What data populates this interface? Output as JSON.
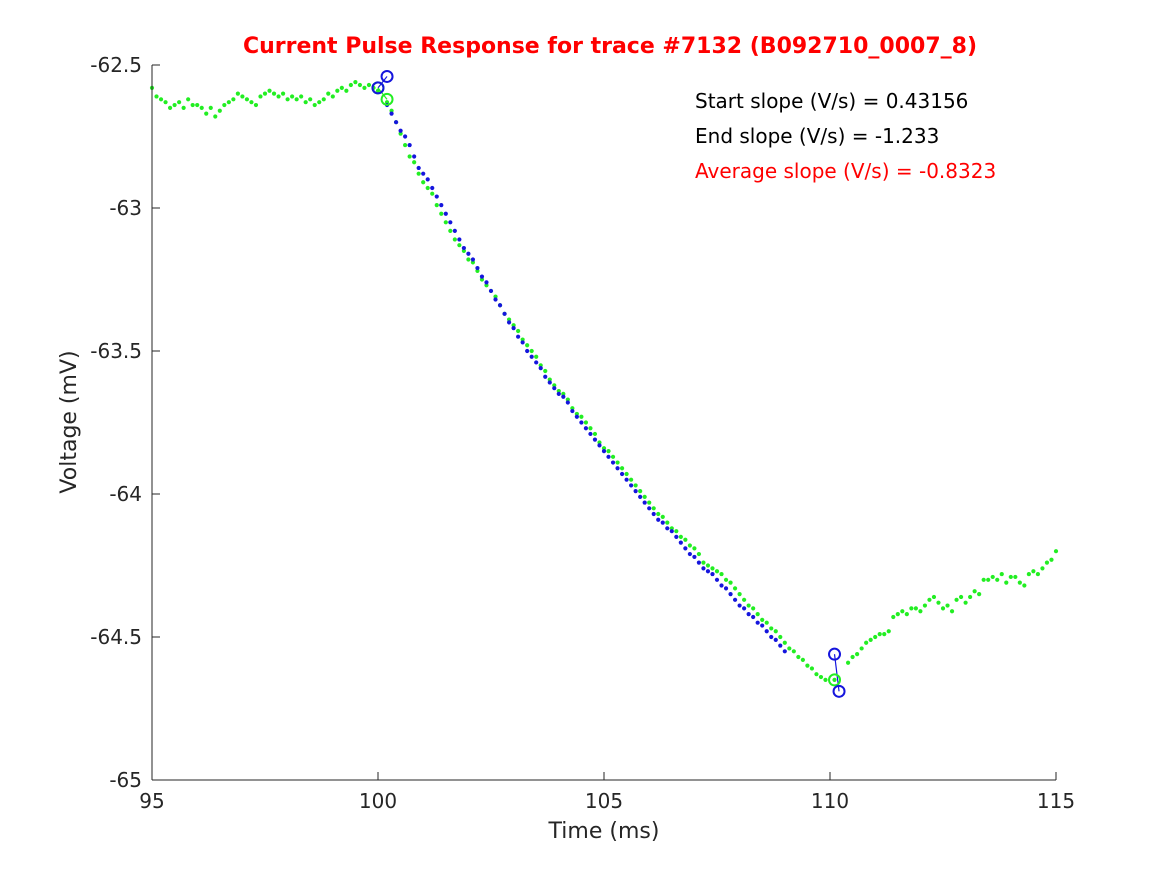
{
  "chart_data": {
    "type": "scatter",
    "title": "Current Pulse Response for trace #7132 (B092710_0007_8)",
    "xlabel": "Time (ms)",
    "ylabel": "Voltage (mV)",
    "xlim": [
      95,
      115
    ],
    "ylim": [
      -65,
      -62.5
    ],
    "xticks": [
      95,
      100,
      105,
      110,
      115
    ],
    "yticks": [
      -65,
      -64.5,
      -64,
      -63.5,
      -63,
      -62.5
    ],
    "xtick_labels": [
      "95",
      "100",
      "105",
      "110",
      "115"
    ],
    "ytick_labels": [
      "-65",
      "-64.5",
      "-64",
      "-63.5",
      "-63",
      "-62.5"
    ],
    "grid": false,
    "colors": {
      "green": "#22ee22",
      "blue": "#1515dd",
      "title": "#ff0000",
      "annotation_black": "#000000",
      "annotation_red": "#ff0000",
      "axis": "#262626"
    },
    "green_trace_points": [
      [
        95.0,
        -62.58
      ],
      [
        95.1,
        -62.61
      ],
      [
        95.2,
        -62.62
      ],
      [
        95.3,
        -62.63
      ],
      [
        95.4,
        -62.65
      ],
      [
        95.5,
        -62.64
      ],
      [
        95.6,
        -62.63
      ],
      [
        95.7,
        -62.65
      ],
      [
        95.8,
        -62.62
      ],
      [
        95.9,
        -62.64
      ],
      [
        96.0,
        -62.64
      ],
      [
        96.1,
        -62.65
      ],
      [
        96.2,
        -62.67
      ],
      [
        96.3,
        -62.65
      ],
      [
        96.4,
        -62.68
      ],
      [
        96.5,
        -62.66
      ],
      [
        96.6,
        -62.64
      ],
      [
        96.7,
        -62.63
      ],
      [
        96.8,
        -62.62
      ],
      [
        96.9,
        -62.6
      ],
      [
        97.0,
        -62.61
      ],
      [
        97.1,
        -62.62
      ],
      [
        97.2,
        -62.63
      ],
      [
        97.3,
        -62.64
      ],
      [
        97.4,
        -62.61
      ],
      [
        97.5,
        -62.6
      ],
      [
        97.6,
        -62.59
      ],
      [
        97.7,
        -62.6
      ],
      [
        97.8,
        -62.61
      ],
      [
        97.9,
        -62.6
      ],
      [
        98.0,
        -62.62
      ],
      [
        98.1,
        -62.61
      ],
      [
        98.2,
        -62.62
      ],
      [
        98.3,
        -62.61
      ],
      [
        98.4,
        -62.63
      ],
      [
        98.5,
        -62.62
      ],
      [
        98.6,
        -62.64
      ],
      [
        98.7,
        -62.63
      ],
      [
        98.8,
        -62.62
      ],
      [
        98.9,
        -62.6
      ],
      [
        99.0,
        -62.61
      ],
      [
        99.1,
        -62.59
      ],
      [
        99.2,
        -62.58
      ],
      [
        99.3,
        -62.59
      ],
      [
        99.4,
        -62.57
      ],
      [
        99.5,
        -62.56
      ],
      [
        99.6,
        -62.57
      ],
      [
        99.7,
        -62.58
      ],
      [
        99.8,
        -62.57
      ],
      [
        99.9,
        -62.58
      ],
      [
        100.0,
        -62.59
      ],
      [
        100.2,
        -62.63
      ],
      [
        100.3,
        -62.66
      ],
      [
        100.4,
        -62.7
      ],
      [
        100.5,
        -62.74
      ],
      [
        100.6,
        -62.78
      ],
      [
        100.7,
        -62.82
      ],
      [
        100.8,
        -62.84
      ],
      [
        100.9,
        -62.88
      ],
      [
        101.0,
        -62.91
      ],
      [
        101.1,
        -62.93
      ],
      [
        101.2,
        -62.95
      ],
      [
        101.3,
        -62.99
      ],
      [
        101.4,
        -63.02
      ],
      [
        101.5,
        -63.05
      ],
      [
        101.6,
        -63.08
      ],
      [
        101.7,
        -63.11
      ],
      [
        101.8,
        -63.13
      ],
      [
        101.9,
        -63.15
      ],
      [
        102.0,
        -63.18
      ],
      [
        102.1,
        -63.19
      ],
      [
        102.2,
        -63.22
      ],
      [
        102.3,
        -63.25
      ],
      [
        102.4,
        -63.27
      ],
      [
        102.5,
        -63.29
      ],
      [
        102.6,
        -63.31
      ],
      [
        102.7,
        -63.34
      ],
      [
        102.8,
        -63.37
      ],
      [
        102.9,
        -63.39
      ],
      [
        103.0,
        -63.41
      ],
      [
        103.1,
        -63.43
      ],
      [
        103.2,
        -63.46
      ],
      [
        103.3,
        -63.48
      ],
      [
        103.4,
        -63.5
      ],
      [
        103.5,
        -63.52
      ],
      [
        103.6,
        -63.55
      ],
      [
        103.7,
        -63.57
      ],
      [
        103.8,
        -63.6
      ],
      [
        103.9,
        -63.62
      ],
      [
        104.0,
        -63.64
      ],
      [
        104.1,
        -63.65
      ],
      [
        104.2,
        -63.67
      ],
      [
        104.3,
        -63.7
      ],
      [
        104.4,
        -63.72
      ],
      [
        104.5,
        -63.73
      ],
      [
        104.6,
        -63.75
      ],
      [
        104.7,
        -63.77
      ],
      [
        104.8,
        -63.79
      ],
      [
        104.9,
        -63.82
      ],
      [
        105.0,
        -63.84
      ],
      [
        105.1,
        -63.85
      ],
      [
        105.2,
        -63.87
      ],
      [
        105.3,
        -63.89
      ],
      [
        105.4,
        -63.91
      ],
      [
        105.5,
        -63.93
      ],
      [
        105.6,
        -63.95
      ],
      [
        105.7,
        -63.97
      ],
      [
        105.8,
        -63.99
      ],
      [
        105.9,
        -64.01
      ],
      [
        106.0,
        -64.03
      ],
      [
        106.1,
        -64.05
      ],
      [
        106.2,
        -64.07
      ],
      [
        106.3,
        -64.08
      ],
      [
        106.4,
        -64.1
      ],
      [
        106.5,
        -64.12
      ],
      [
        106.6,
        -64.13
      ],
      [
        106.7,
        -64.15
      ],
      [
        106.8,
        -64.16
      ],
      [
        106.9,
        -64.18
      ],
      [
        107.0,
        -64.19
      ],
      [
        107.1,
        -64.21
      ],
      [
        107.2,
        -64.24
      ],
      [
        107.3,
        -64.25
      ],
      [
        107.4,
        -64.26
      ],
      [
        107.5,
        -64.27
      ],
      [
        107.6,
        -64.28
      ],
      [
        107.7,
        -64.3
      ],
      [
        107.8,
        -64.31
      ],
      [
        107.9,
        -64.33
      ],
      [
        108.0,
        -64.35
      ],
      [
        108.1,
        -64.37
      ],
      [
        108.2,
        -64.39
      ],
      [
        108.3,
        -64.4
      ],
      [
        108.4,
        -64.42
      ],
      [
        108.5,
        -64.44
      ],
      [
        108.6,
        -64.45
      ],
      [
        108.7,
        -64.47
      ],
      [
        108.8,
        -64.48
      ],
      [
        108.9,
        -64.5
      ],
      [
        109.0,
        -64.52
      ],
      [
        109.1,
        -64.54
      ],
      [
        109.2,
        -64.55
      ],
      [
        109.3,
        -64.57
      ],
      [
        109.4,
        -64.58
      ],
      [
        109.5,
        -64.6
      ],
      [
        109.6,
        -64.61
      ],
      [
        109.7,
        -64.63
      ],
      [
        109.8,
        -64.64
      ],
      [
        109.9,
        -64.65
      ],
      [
        110.1,
        -64.65
      ],
      [
        110.4,
        -64.59
      ],
      [
        110.5,
        -64.57
      ],
      [
        110.6,
        -64.56
      ],
      [
        110.7,
        -64.54
      ],
      [
        110.8,
        -64.52
      ],
      [
        110.9,
        -64.51
      ],
      [
        111.0,
        -64.5
      ],
      [
        111.1,
        -64.49
      ],
      [
        111.2,
        -64.49
      ],
      [
        111.3,
        -64.48
      ],
      [
        111.4,
        -64.43
      ],
      [
        111.5,
        -64.42
      ],
      [
        111.6,
        -64.41
      ],
      [
        111.7,
        -64.42
      ],
      [
        111.8,
        -64.4
      ],
      [
        111.9,
        -64.4
      ],
      [
        112.0,
        -64.41
      ],
      [
        112.1,
        -64.39
      ],
      [
        112.2,
        -64.37
      ],
      [
        112.3,
        -64.36
      ],
      [
        112.4,
        -64.38
      ],
      [
        112.5,
        -64.4
      ],
      [
        112.6,
        -64.39
      ],
      [
        112.7,
        -64.41
      ],
      [
        112.8,
        -64.37
      ],
      [
        112.9,
        -64.36
      ],
      [
        113.0,
        -64.38
      ],
      [
        113.1,
        -64.36
      ],
      [
        113.2,
        -64.34
      ],
      [
        113.3,
        -64.35
      ],
      [
        113.4,
        -64.3
      ],
      [
        113.5,
        -64.3
      ],
      [
        113.6,
        -64.29
      ],
      [
        113.7,
        -64.3
      ],
      [
        113.8,
        -64.28
      ],
      [
        113.9,
        -64.31
      ],
      [
        114.0,
        -64.29
      ],
      [
        114.1,
        -64.29
      ],
      [
        114.2,
        -64.31
      ],
      [
        114.3,
        -64.32
      ],
      [
        114.4,
        -64.28
      ],
      [
        114.5,
        -64.27
      ],
      [
        114.6,
        -64.28
      ],
      [
        114.7,
        -64.26
      ],
      [
        114.8,
        -64.24
      ],
      [
        114.9,
        -64.23
      ],
      [
        115.0,
        -64.2
      ]
    ],
    "blue_trace_points": [
      [
        100.2,
        -62.64
      ],
      [
        100.3,
        -62.67
      ],
      [
        100.4,
        -62.7
      ],
      [
        100.5,
        -62.73
      ],
      [
        100.6,
        -62.75
      ],
      [
        100.7,
        -62.78
      ],
      [
        100.8,
        -62.82
      ],
      [
        100.9,
        -62.86
      ],
      [
        101.0,
        -62.88
      ],
      [
        101.1,
        -62.9
      ],
      [
        101.2,
        -62.93
      ],
      [
        101.3,
        -62.96
      ],
      [
        101.4,
        -62.99
      ],
      [
        101.5,
        -63.02
      ],
      [
        101.6,
        -63.05
      ],
      [
        101.7,
        -63.08
      ],
      [
        101.8,
        -63.11
      ],
      [
        101.9,
        -63.14
      ],
      [
        102.0,
        -63.16
      ],
      [
        102.1,
        -63.18
      ],
      [
        102.2,
        -63.21
      ],
      [
        102.3,
        -63.24
      ],
      [
        102.4,
        -63.26
      ],
      [
        102.5,
        -63.29
      ],
      [
        102.6,
        -63.32
      ],
      [
        102.7,
        -63.34
      ],
      [
        102.8,
        -63.37
      ],
      [
        102.9,
        -63.4
      ],
      [
        103.0,
        -63.42
      ],
      [
        103.1,
        -63.45
      ],
      [
        103.2,
        -63.47
      ],
      [
        103.3,
        -63.5
      ],
      [
        103.4,
        -63.52
      ],
      [
        103.5,
        -63.54
      ],
      [
        103.6,
        -63.56
      ],
      [
        103.7,
        -63.59
      ],
      [
        103.8,
        -63.61
      ],
      [
        103.9,
        -63.63
      ],
      [
        104.0,
        -63.65
      ],
      [
        104.1,
        -63.66
      ],
      [
        104.2,
        -63.68
      ],
      [
        104.3,
        -63.71
      ],
      [
        104.4,
        -63.73
      ],
      [
        104.5,
        -63.75
      ],
      [
        104.6,
        -63.77
      ],
      [
        104.7,
        -63.79
      ],
      [
        104.8,
        -63.81
      ],
      [
        104.9,
        -63.83
      ],
      [
        105.0,
        -63.85
      ],
      [
        105.1,
        -63.87
      ],
      [
        105.2,
        -63.89
      ],
      [
        105.3,
        -63.91
      ],
      [
        105.4,
        -63.93
      ],
      [
        105.5,
        -63.95
      ],
      [
        105.6,
        -63.97
      ],
      [
        105.7,
        -63.99
      ],
      [
        105.8,
        -64.01
      ],
      [
        105.9,
        -64.03
      ],
      [
        106.0,
        -64.05
      ],
      [
        106.1,
        -64.07
      ],
      [
        106.2,
        -64.09
      ],
      [
        106.3,
        -64.1
      ],
      [
        106.4,
        -64.12
      ],
      [
        106.5,
        -64.13
      ],
      [
        106.6,
        -64.15
      ],
      [
        106.7,
        -64.17
      ],
      [
        106.8,
        -64.19
      ],
      [
        106.9,
        -64.21
      ],
      [
        107.0,
        -64.22
      ],
      [
        107.1,
        -64.24
      ],
      [
        107.2,
        -64.26
      ],
      [
        107.3,
        -64.27
      ],
      [
        107.4,
        -64.28
      ],
      [
        107.5,
        -64.3
      ],
      [
        107.6,
        -64.32
      ],
      [
        107.7,
        -64.33
      ],
      [
        107.8,
        -64.35
      ],
      [
        107.9,
        -64.37
      ],
      [
        108.0,
        -64.39
      ],
      [
        108.1,
        -64.4
      ],
      [
        108.2,
        -64.42
      ],
      [
        108.3,
        -64.43
      ],
      [
        108.4,
        -64.45
      ],
      [
        108.5,
        -64.46
      ],
      [
        108.6,
        -64.48
      ],
      [
        108.7,
        -64.5
      ],
      [
        108.8,
        -64.51
      ],
      [
        108.9,
        -64.53
      ],
      [
        109.0,
        -64.55
      ]
    ],
    "start_markers": {
      "blue": [
        [
          100.0,
          -62.58
        ],
        [
          100.2,
          -62.54
        ]
      ],
      "green": [
        [
          100.0,
          -62.58
        ],
        [
          100.2,
          -62.62
        ]
      ]
    },
    "end_markers": {
      "blue": [
        [
          110.1,
          -64.56
        ],
        [
          110.2,
          -64.69
        ]
      ],
      "green": [
        [
          110.1,
          -64.65
        ]
      ]
    },
    "annotations": [
      {
        "text": "Start slope (V/s) = 0.43156",
        "color": "#000000"
      },
      {
        "text": "End slope (V/s) = -1.233",
        "color": "#000000"
      },
      {
        "text": "Average slope (V/s) = -0.8323",
        "color": "#ff0000"
      }
    ]
  }
}
